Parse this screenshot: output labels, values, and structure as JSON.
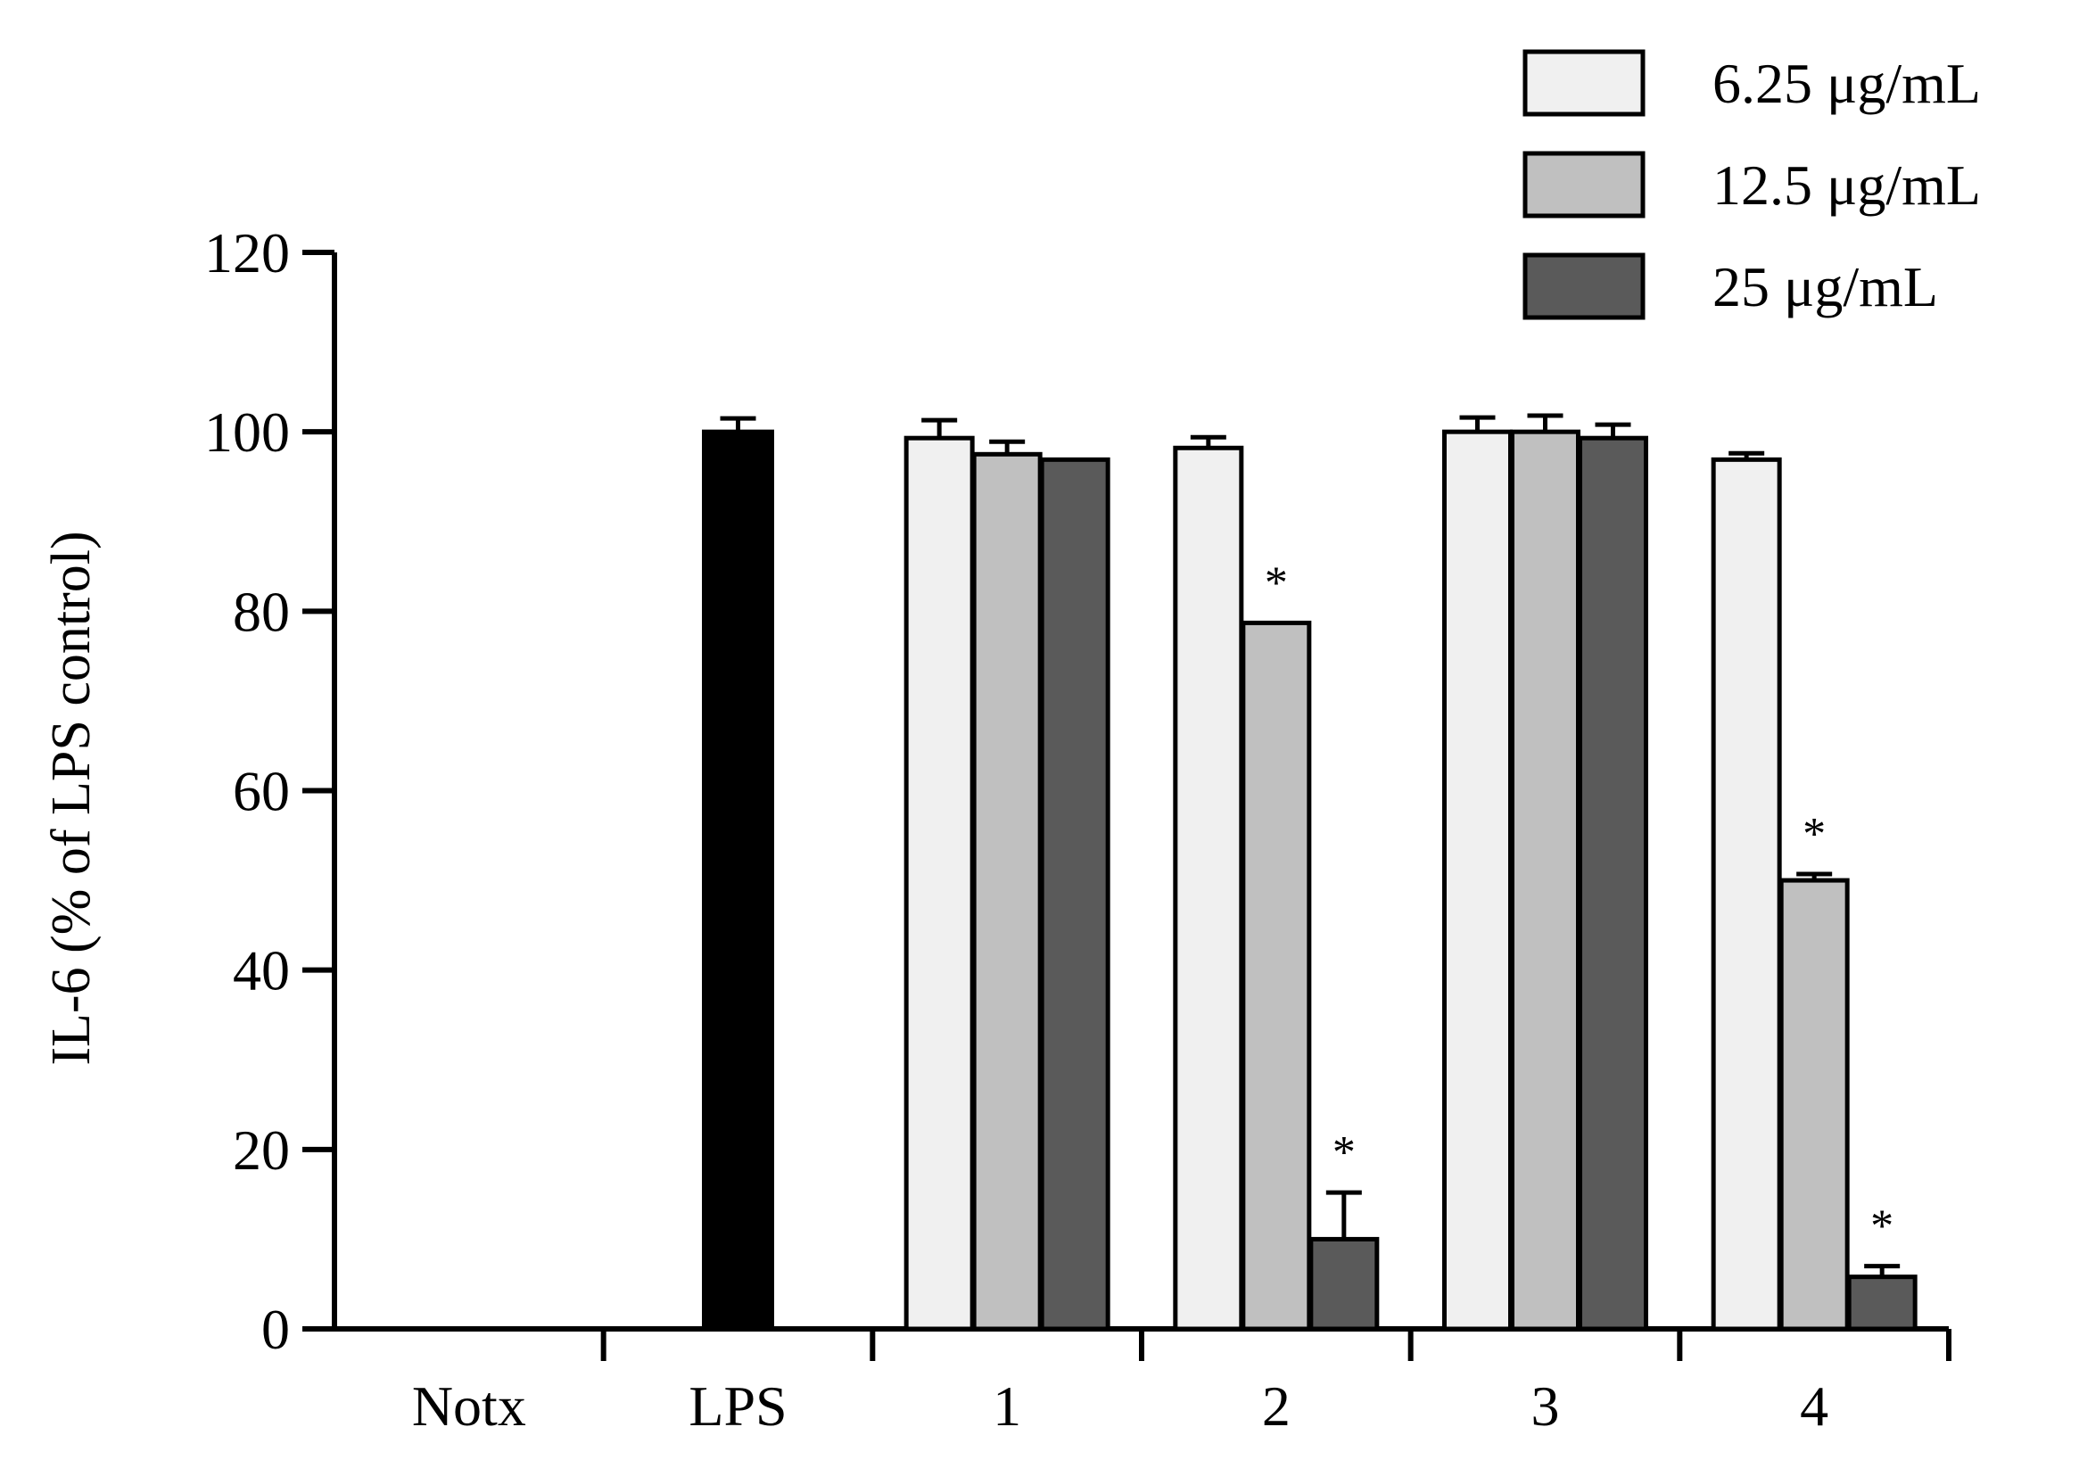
{
  "chart_data": {
    "type": "bar",
    "title": "",
    "xlabel": "",
    "ylabel": "IL-6  (% of LPS control)",
    "ylim": [
      0,
      120
    ],
    "yticks": [
      0,
      20,
      40,
      60,
      80,
      100,
      120
    ],
    "grid": false,
    "legend_position": "top-right",
    "categories": [
      "Notx",
      "LPS",
      "1",
      "2",
      "3",
      "4"
    ],
    "single_bar_series": {
      "name": "",
      "color": "#000000",
      "values": [
        0,
        100
      ],
      "errors": [
        0,
        1.5
      ]
    },
    "series": [
      {
        "name": "6.25  μg/mL",
        "color": "#f0f0f0",
        "values": [
          null,
          null,
          99.3,
          98.2,
          100,
          96.9
        ],
        "errors": [
          null,
          null,
          2.0,
          1.2,
          1.6,
          0.7
        ],
        "significant": [
          false,
          false,
          false,
          false,
          false,
          false
        ]
      },
      {
        "name": "12.5  μg/mL",
        "color": "#c0c0c0",
        "values": [
          null,
          null,
          97.5,
          78.7,
          100,
          50.0
        ],
        "errors": [
          null,
          null,
          1.4,
          0,
          1.8,
          0.7
        ],
        "significant": [
          false,
          false,
          false,
          true,
          false,
          true
        ]
      },
      {
        "name": "25  μg/mL",
        "color": "#5a5a5a",
        "values": [
          null,
          null,
          96.9,
          10.0,
          99.3,
          5.8
        ],
        "errors": [
          null,
          null,
          0,
          5.2,
          1.5,
          1.2
        ],
        "significant": [
          false,
          false,
          false,
          true,
          false,
          true
        ]
      }
    ],
    "significance_marker": "*"
  }
}
